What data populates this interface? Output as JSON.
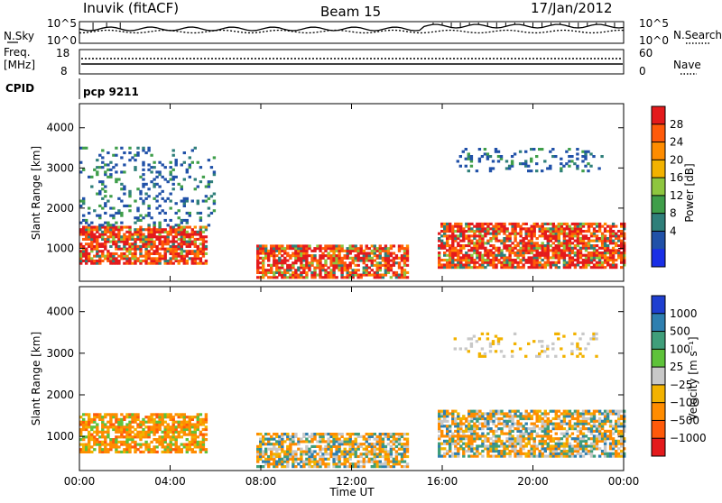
{
  "header": {
    "station": "Inuvik (fitACF)",
    "beam": "Beam 15",
    "date": "17/Jan/2012"
  },
  "noise_panel": {
    "left_label": "N.Sky",
    "right_label": "N.Search",
    "left_ticks": [
      "10^5",
      "10^0"
    ],
    "right_ticks": [
      "10^5",
      "10^0"
    ]
  },
  "freq_panel": {
    "left_label_line1": "Freq.",
    "left_label_line2": "[MHz]",
    "right_label": "Nave",
    "left_ticks": [
      "18",
      "8"
    ],
    "right_ticks": [
      "60",
      "0"
    ]
  },
  "cpid_panel": {
    "label": "CPID",
    "value": "pcp 9211"
  },
  "y_axis": {
    "label": "Slant Range [km]",
    "ticks": [
      "4000",
      "3000",
      "2000",
      "1000"
    ]
  },
  "x_axis": {
    "label": "Time UT",
    "ticks": [
      "00:00",
      "04:00",
      "08:00",
      "12:00",
      "16:00",
      "20:00",
      "00:00"
    ]
  },
  "power_colorbar": {
    "label": "Power [dB]",
    "ticks": [
      "28",
      "24",
      "20",
      "16",
      "12",
      "8",
      "4"
    ],
    "colors": [
      "#e41a1c",
      "#ff5a0a",
      "#ff8c00",
      "#f2b200",
      "#8ec63f",
      "#3f9e4a",
      "#2f7f7a",
      "#2151a8",
      "#1a2fe6"
    ]
  },
  "velocity_colorbar": {
    "label": "Velocity [m s⁻¹]",
    "ticks": [
      "1000",
      "500",
      "100",
      "25",
      "−25",
      "−100",
      "−500",
      "−1000"
    ],
    "colors": [
      "#1f3fd0",
      "#2e7fb0",
      "#3f9e7a",
      "#5ec23a",
      "#c8c8c8",
      "#f2b200",
      "#ff8c00",
      "#ff5a0a",
      "#e41a1c"
    ]
  },
  "chart_data": [
    {
      "type": "heatmap",
      "name": "power",
      "x_range_hours": [
        0,
        24
      ],
      "y_range_km": [
        180,
        4600
      ],
      "regions": [
        {
          "t0": 0.0,
          "t1": 5.6,
          "r0": 600,
          "r1": 1550,
          "level": "high"
        },
        {
          "t0": 7.8,
          "t1": 14.5,
          "r0": 250,
          "r1": 1050,
          "level": "high"
        },
        {
          "t0": 15.8,
          "t1": 24.0,
          "r0": 500,
          "r1": 1600,
          "level": "high"
        },
        {
          "t0": 16.5,
          "t1": 23.0,
          "r0": 2900,
          "r1": 3500,
          "level": "low"
        },
        {
          "t0": 0.0,
          "t1": 6.0,
          "r0": 1550,
          "r1": 3500,
          "level": "low"
        }
      ]
    },
    {
      "type": "heatmap",
      "name": "velocity",
      "x_range_hours": [
        0,
        24
      ],
      "y_range_km": [
        180,
        4600
      ],
      "regions": [
        {
          "t0": 0.0,
          "t1": 5.6,
          "r0": 600,
          "r1": 1550,
          "level": "negative"
        },
        {
          "t0": 7.8,
          "t1": 14.5,
          "r0": 250,
          "r1": 1050,
          "level": "mixed"
        },
        {
          "t0": 15.8,
          "t1": 24.0,
          "r0": 500,
          "r1": 1600,
          "level": "mixed"
        },
        {
          "t0": 16.5,
          "t1": 23.0,
          "r0": 2900,
          "r1": 3500,
          "level": "low"
        }
      ]
    }
  ]
}
